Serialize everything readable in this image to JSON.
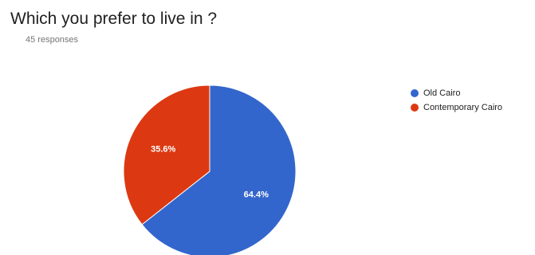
{
  "header": {
    "title": "Which you prefer to live in ?",
    "responses": "45 responses"
  },
  "colors": {
    "old_cairo": "#3366cc",
    "contemporary_cairo": "#dc3912"
  },
  "chart_data": {
    "type": "pie",
    "title": "Which you prefer to live in ?",
    "subtitle": "45 responses",
    "categories": [
      "Old Cairo",
      "Contemporary Cairo"
    ],
    "values": [
      64.4,
      35.6
    ],
    "data_labels": [
      "64.4%",
      "35.6%"
    ],
    "colors": [
      "#3366cc",
      "#dc3912"
    ],
    "start_angle_deg": 90,
    "direction": "clockwise",
    "legend": "right"
  }
}
